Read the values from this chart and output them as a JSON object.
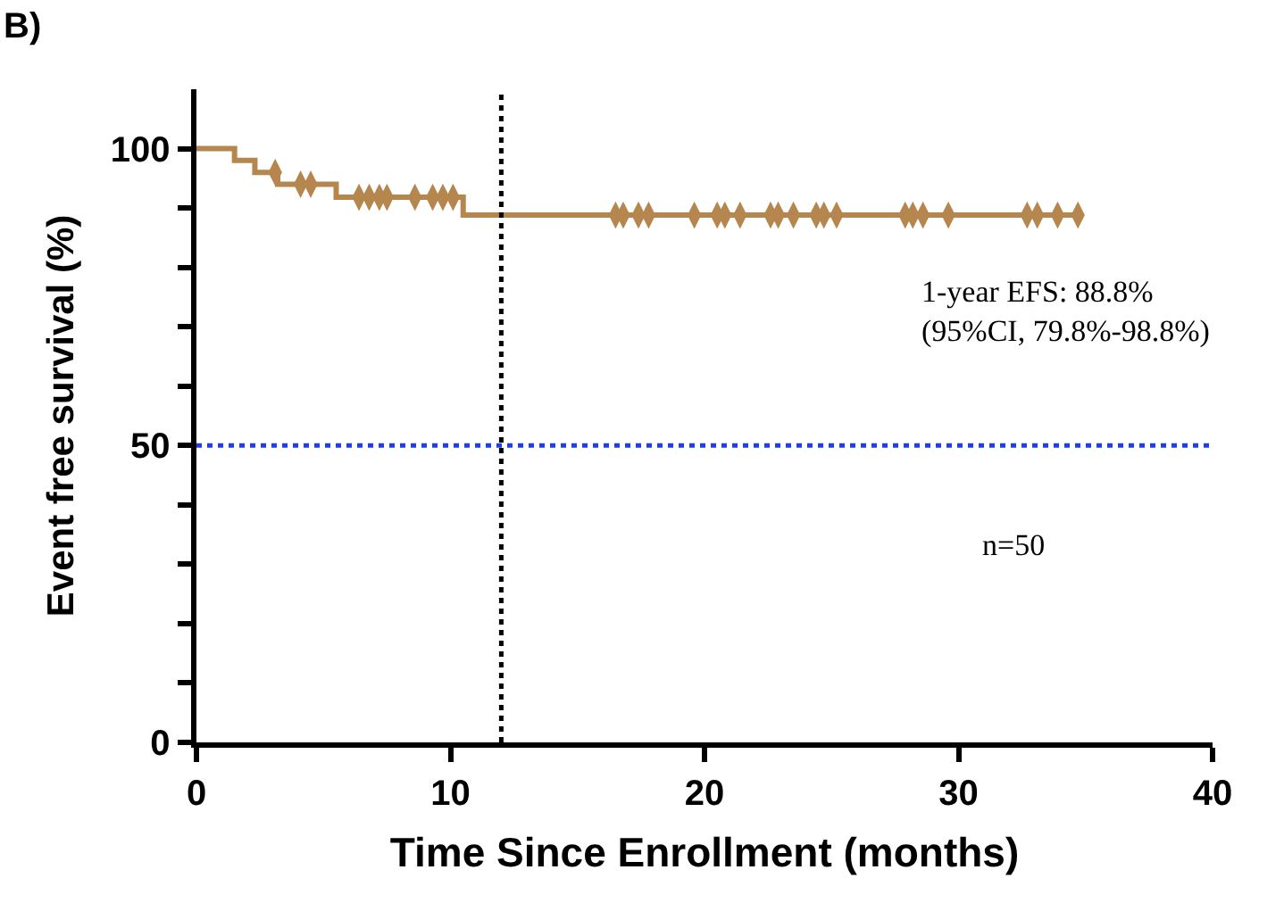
{
  "chart_data": {
    "type": "step",
    "title": "B)",
    "xlabel": "Time Since Enrollment (months)",
    "ylabel": "Event free survival (%)",
    "series": [
      {
        "color": "#b5874f",
        "x": [
          0,
          1.5,
          2.3,
          3.2,
          5.5,
          10.5,
          34.8
        ],
        "values": [
          100,
          98,
          96,
          94,
          91.8,
          88.8,
          88.8
        ]
      },
      {
        "type": "scatter",
        "color": "#b5874f",
        "marker": "diamond",
        "x": [
          3.1,
          4.1,
          4.5,
          6.4,
          6.8,
          7.2,
          7.5,
          8.6,
          9.3,
          9.7,
          10.1,
          16.5,
          16.8,
          17.4,
          17.8,
          19.6,
          20.5,
          20.8,
          21.4,
          22.6,
          22.9,
          23.5,
          24.4,
          24.7,
          25.2,
          27.9,
          28.2,
          28.6,
          29.6,
          32.7,
          33.1,
          33.9,
          34.7
        ],
        "values": [
          96,
          94,
          94,
          91.8,
          91.8,
          91.8,
          91.8,
          91.8,
          91.8,
          91.8,
          91.8,
          88.8,
          88.8,
          88.8,
          88.8,
          88.8,
          88.8,
          88.8,
          88.8,
          88.8,
          88.8,
          88.8,
          88.8,
          88.8,
          88.8,
          88.8,
          88.8,
          88.8,
          88.8,
          88.8,
          88.8,
          88.8,
          88.8
        ]
      }
    ],
    "xlim": [
      0,
      40
    ],
    "xticks": [
      0,
      10,
      20,
      30,
      40
    ],
    "ylim": [
      0,
      110
    ],
    "yticks": [
      0,
      {
        "value": 10,
        "label": null
      },
      {
        "value": 20,
        "label": null
      },
      {
        "value": 30,
        "label": null
      },
      {
        "value": 40,
        "label": null
      },
      50,
      {
        "value": 60,
        "label": null
      },
      {
        "value": 70,
        "label": null
      },
      {
        "value": 80,
        "label": null
      },
      {
        "value": 90,
        "label": null
      },
      100
    ],
    "ref_lines": [
      {
        "axis": "x",
        "value": 12,
        "color": "#000000",
        "line_style": "dotted"
      },
      {
        "axis": "y",
        "value": 50,
        "color": "#1f3fe0",
        "line_style": "dotted"
      }
    ],
    "annotations": [
      "1-year EFS: 88.8%\n(95%CI, 79.8%-98.8%)",
      "n=50"
    ]
  }
}
